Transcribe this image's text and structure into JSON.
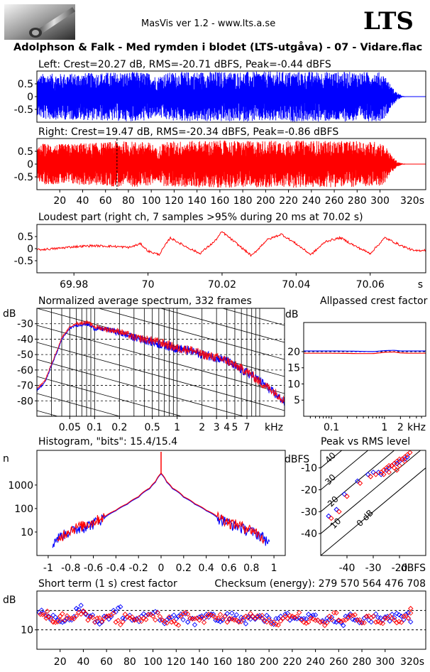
{
  "header": {
    "app": "MasVis ver 1.2 - www.lts.a.se",
    "brand": "LTS",
    "track": "Adolphson & Falk - Med rymden i blodet (LTS-utgåva) - 07 - Vidare.flac"
  },
  "colors": {
    "left": "#0000ff",
    "right": "#ff0000",
    "grid": "#000000",
    "background": "#ffffff"
  },
  "chart_data": [
    {
      "id": "waveform_left",
      "type": "area",
      "title": "Left: Crest=20.27 dB, RMS=-20.71 dBFS, Peak=-0.44 dBFS",
      "series": [
        {
          "name": "Left",
          "color": "#0000ff"
        }
      ],
      "ylim": [
        -1,
        1
      ],
      "yticks": [
        0.5,
        0,
        -0.5
      ],
      "ytick_labels": [
        "0.5",
        "0",
        "-0.5"
      ],
      "xlim": [
        0,
        340
      ],
      "envelope_x": [
        0,
        5,
        20,
        40,
        60,
        70,
        90,
        100,
        105,
        110,
        120,
        130,
        150,
        170,
        180,
        200,
        220,
        240,
        260,
        280,
        300,
        305,
        310,
        315,
        320
      ],
      "envelope_peak": [
        0.72,
        0.9,
        0.9,
        0.92,
        0.95,
        0.96,
        0.97,
        0.92,
        0.75,
        0.92,
        0.96,
        0.97,
        0.98,
        0.98,
        0.97,
        0.98,
        0.98,
        0.98,
        0.97,
        0.97,
        0.96,
        0.8,
        0.4,
        0.15,
        0.02
      ]
    },
    {
      "id": "waveform_right",
      "type": "area",
      "title": "Right: Crest=19.47 dB, RMS=-20.34 dBFS, Peak=-0.86 dBFS",
      "series": [
        {
          "name": "Right",
          "color": "#ff0000"
        }
      ],
      "ylim": [
        -1,
        1
      ],
      "yticks": [
        0.5,
        0,
        -0.5
      ],
      "ytick_labels": [
        "0.5",
        "0",
        "-0.5"
      ],
      "xlim": [
        0,
        340
      ],
      "xticks": [
        20,
        40,
        60,
        80,
        100,
        120,
        140,
        160,
        180,
        200,
        220,
        240,
        260,
        280,
        300
      ],
      "xtick_labels": [
        "20",
        "40",
        "60",
        "80",
        "100",
        "120",
        "140",
        "160",
        "180",
        "200",
        "220",
        "240",
        "260",
        "280",
        "300"
      ],
      "xunit_label": "320s",
      "marker_x": 70.02,
      "envelope_x": [
        0,
        5,
        20,
        40,
        60,
        70,
        90,
        100,
        105,
        110,
        120,
        130,
        150,
        170,
        180,
        200,
        220,
        240,
        260,
        280,
        300,
        305,
        310,
        315,
        320
      ],
      "envelope_peak": [
        0.6,
        0.8,
        0.78,
        0.82,
        0.85,
        0.9,
        0.88,
        0.84,
        0.6,
        0.85,
        0.9,
        0.9,
        0.92,
        0.92,
        0.9,
        0.92,
        0.92,
        0.92,
        0.9,
        0.9,
        0.88,
        0.7,
        0.35,
        0.1,
        0.02
      ]
    },
    {
      "id": "loudest_part",
      "type": "line",
      "title": "Loudest part (right ch, 7 samples >95% during 20 ms at 70.02 s)",
      "ylim": [
        -1,
        1
      ],
      "yticks": [
        0.5,
        0,
        -0.5
      ],
      "ytick_labels": [
        "0.5",
        "0",
        "-0.5"
      ],
      "xlim": [
        69.97,
        70.075
      ],
      "xticks": [
        69.98,
        70.0,
        70.02,
        70.04,
        70.06
      ],
      "xtick_labels": [
        "69.98",
        "70",
        "70.02",
        "70.04",
        "70.06"
      ],
      "xunit_label": "s",
      "series": [
        {
          "name": "Right",
          "color": "#ff0000",
          "x": [
            69.97,
            69.975,
            69.98,
            69.985,
            69.99,
            69.995,
            69.998,
            70.0,
            70.003,
            70.006,
            70.01,
            70.014,
            70.018,
            70.02,
            70.024,
            70.028,
            70.032,
            70.036,
            70.04,
            70.044,
            70.048,
            70.052,
            70.056,
            70.06,
            70.064,
            70.068,
            70.072,
            70.075
          ],
          "y": [
            -0.05,
            0.0,
            0.08,
            0.12,
            0.1,
            0.05,
            0.2,
            -0.1,
            -0.25,
            0.45,
            0.1,
            -0.2,
            0.3,
            0.7,
            0.2,
            -0.3,
            0.35,
            0.6,
            0.2,
            -0.25,
            0.3,
            0.45,
            0.1,
            -0.2,
            0.45,
            0.15,
            -0.1,
            -0.05
          ]
        }
      ]
    },
    {
      "id": "spectrum",
      "type": "line",
      "title": "Normalized average spectrum, 332 frames",
      "ylabel": "dB",
      "xlabel": "kHz",
      "xscale": "log",
      "xlim": [
        0.02,
        20
      ],
      "ylim": [
        -90,
        -20
      ],
      "yticks": [
        -30,
        -40,
        -50,
        -60,
        -70,
        -80
      ],
      "ytick_labels": [
        "-30",
        "-40",
        "-50",
        "-60",
        "-70",
        "-80"
      ],
      "xticks": [
        0.05,
        0.1,
        0.2,
        0.5,
        1,
        2,
        3,
        4,
        5,
        7
      ],
      "xtick_labels": [
        "0.05",
        "0.1",
        "0.2",
        "0.5",
        "1",
        "2",
        "3",
        "4",
        "5",
        "7"
      ],
      "series": [
        {
          "name": "Left",
          "color": "#0000ff",
          "x": [
            0.02,
            0.025,
            0.03,
            0.04,
            0.05,
            0.06,
            0.08,
            0.1,
            0.15,
            0.2,
            0.3,
            0.5,
            0.7,
            1,
            1.5,
            2,
            3,
            4,
            5,
            7,
            10,
            14,
            20
          ],
          "y": [
            -73,
            -68,
            -57,
            -40,
            -33,
            -31,
            -30,
            -33,
            -34,
            -36,
            -39,
            -42,
            -44,
            -46,
            -48,
            -50,
            -52,
            -54,
            -58,
            -62,
            -67,
            -74,
            -81
          ]
        },
        {
          "name": "Right",
          "color": "#ff0000",
          "x": [
            0.02,
            0.025,
            0.03,
            0.04,
            0.05,
            0.06,
            0.08,
            0.1,
            0.15,
            0.2,
            0.3,
            0.5,
            0.7,
            1,
            1.5,
            2,
            3,
            4,
            5,
            7,
            10,
            14,
            20
          ],
          "y": [
            -72,
            -67,
            -56,
            -39,
            -32,
            -30,
            -29,
            -32,
            -34,
            -35,
            -39,
            -41,
            -43,
            -46,
            -47,
            -50,
            -52,
            -54,
            -57,
            -61,
            -68,
            -73,
            -80
          ]
        }
      ]
    },
    {
      "id": "allpassed_crest",
      "type": "line",
      "title": "Allpassed crest factor",
      "ylabel": "dB",
      "xlabel": "kHz",
      "xscale": "log",
      "xlim": [
        0.03,
        6
      ],
      "ylim": [
        0,
        29
      ],
      "yticks": [
        20,
        15,
        10,
        5
      ],
      "ytick_labels": [
        "20",
        "15",
        "10",
        "5"
      ],
      "xticks": [
        0.1,
        1,
        2
      ],
      "xtick_labels": [
        "0.1",
        "1",
        "2"
      ],
      "reference_y": 20,
      "series": [
        {
          "name": "Left",
          "color": "#0000ff",
          "x": [
            0.03,
            0.1,
            0.3,
            0.6,
            1,
            1.5,
            2,
            3,
            6
          ],
          "y": [
            20.2,
            20.2,
            20.1,
            20.0,
            20.3,
            20.4,
            20.2,
            20.2,
            20.2
          ]
        },
        {
          "name": "Right",
          "color": "#ff0000",
          "x": [
            0.03,
            0.1,
            0.3,
            0.6,
            1,
            1.5,
            2,
            3,
            6
          ],
          "y": [
            19.5,
            19.5,
            19.4,
            19.4,
            19.8,
            19.9,
            19.6,
            19.5,
            19.5
          ]
        }
      ]
    },
    {
      "id": "histogram",
      "type": "line",
      "title": "Histogram, \"bits\": 15.4/15.4",
      "ylabel": "n",
      "yscale": "log",
      "xlim": [
        -1.1,
        1.1
      ],
      "ylim": [
        1,
        30000
      ],
      "yticks": [
        10,
        100,
        1000
      ],
      "ytick_labels": [
        "10",
        "100",
        "1000"
      ],
      "xticks": [
        -1,
        -0.8,
        -0.6,
        -0.4,
        -0.2,
        0,
        0.2,
        0.4,
        0.6,
        0.8,
        1
      ],
      "xtick_labels": [
        "-1",
        "-0.8",
        "-0.6",
        "-0.4",
        "-0.2",
        "0",
        "0.2",
        "0.4",
        "0.6",
        "0.8",
        "1"
      ],
      "series": [
        {
          "name": "Left",
          "color": "#0000ff",
          "x": [
            -0.96,
            -0.9,
            -0.8,
            -0.7,
            -0.6,
            -0.5,
            -0.4,
            -0.3,
            -0.2,
            -0.1,
            -0.05,
            0,
            0.05,
            0.1,
            0.2,
            0.3,
            0.4,
            0.5,
            0.6,
            0.7,
            0.8,
            0.9,
            0.96
          ],
          "y": [
            3,
            6,
            10,
            15,
            22,
            40,
            80,
            150,
            300,
            700,
            1300,
            3000,
            1300,
            700,
            300,
            150,
            80,
            40,
            22,
            15,
            10,
            6,
            3
          ]
        },
        {
          "name": "Right",
          "color": "#ff0000",
          "x": [
            -0.92,
            -0.86,
            -0.8,
            -0.7,
            -0.6,
            -0.5,
            -0.4,
            -0.3,
            -0.2,
            -0.1,
            -0.05,
            0,
            0.05,
            0.1,
            0.2,
            0.3,
            0.4,
            0.5,
            0.6,
            0.7,
            0.8,
            0.86,
            0.92
          ],
          "y": [
            3,
            8,
            12,
            18,
            25,
            45,
            85,
            160,
            320,
            750,
            1400,
            3200,
            1400,
            750,
            320,
            160,
            85,
            45,
            25,
            18,
            12,
            8,
            3
          ]
        }
      ]
    },
    {
      "id": "peak_vs_rms",
      "type": "scatter",
      "title": "Peak vs RMS level",
      "ylabel": "dBFS",
      "xlabel": "dBFS",
      "xlim": [
        -50,
        -10
      ],
      "ylim": [
        -50,
        -2
      ],
      "yticks": [
        -10,
        -20,
        -30,
        -40
      ],
      "ytick_labels": [
        "-10",
        "-20",
        "-30",
        "-40"
      ],
      "xticks": [
        -40,
        -30,
        -20
      ],
      "xtick_labels": [
        "-40",
        "-30",
        "-20"
      ],
      "diagonals": [
        40,
        30,
        20,
        10,
        0
      ],
      "diagonal_labels": [
        "40",
        "30",
        "20",
        "10",
        "0 dB"
      ],
      "series": [
        {
          "name": "Left",
          "color": "#0000ff",
          "x": [
            -47,
            -44,
            -41,
            -36,
            -32,
            -30,
            -28,
            -27,
            -25,
            -24,
            -23,
            -22,
            -21,
            -20,
            -19,
            -18,
            -17
          ],
          "y": [
            -32,
            -29,
            -22,
            -16,
            -13,
            -12,
            -12,
            -13,
            -11,
            -10,
            -9,
            -8,
            -8,
            -7,
            -6,
            -6,
            -5
          ]
        },
        {
          "name": "Right",
          "color": "#ff0000",
          "x": [
            -46,
            -43,
            -40,
            -35,
            -31,
            -29,
            -27,
            -26,
            -25,
            -24,
            -23,
            -22,
            -21,
            -20,
            -19,
            -18,
            -17,
            -16,
            -24,
            -22,
            -20,
            -18,
            -26,
            -21
          ],
          "y": [
            -33,
            -30,
            -23,
            -17,
            -14,
            -13,
            -12,
            -11,
            -10,
            -9,
            -9,
            -8,
            -7,
            -6,
            -6,
            -5,
            -4,
            -3,
            -12,
            -10,
            -9,
            -7,
            -13,
            -11
          ]
        }
      ]
    },
    {
      "id": "short_term_crest",
      "type": "scatter",
      "title": "Short term (1 s) crest factor",
      "right_label": "Checksum (energy):   279 570 564 476 708",
      "ylabel": "dB",
      "xlim": [
        0,
        335
      ],
      "ylim": [
        0,
        30
      ],
      "yticks": [
        10
      ],
      "ytick_labels": [
        "10"
      ],
      "reference_lines": [
        20,
        10
      ],
      "xticks": [
        20,
        40,
        60,
        80,
        100,
        120,
        140,
        160,
        180,
        200,
        220,
        240,
        260,
        280,
        300
      ],
      "xtick_labels": [
        "20",
        "40",
        "60",
        "80",
        "100",
        "120",
        "140",
        "160",
        "180",
        "200",
        "220",
        "240",
        "260",
        "280",
        "300"
      ],
      "xunit_label": "320s",
      "series": [
        {
          "name": "Left",
          "color": "#0000ff",
          "x": [
            2,
            10,
            18,
            26,
            34,
            42,
            50,
            58,
            66,
            74,
            82,
            90,
            98,
            106,
            114,
            122,
            130,
            138,
            146,
            154,
            162,
            170,
            178,
            186,
            194,
            202,
            210,
            218,
            226,
            234,
            242,
            250,
            258,
            266,
            274,
            282,
            290,
            298,
            306,
            314,
            320
          ],
          "y": [
            19,
            17,
            15,
            16,
            21,
            18,
            14,
            17,
            20,
            16,
            15,
            17,
            18,
            15,
            16,
            17,
            14,
            16,
            18,
            15,
            17,
            16,
            15,
            17,
            16,
            14,
            17,
            15,
            16,
            18,
            15,
            16,
            14,
            17,
            15,
            16,
            17,
            15,
            18,
            17,
            16
          ]
        },
        {
          "name": "Right",
          "color": "#ff0000",
          "x": [
            3,
            8,
            14,
            20,
            28,
            36,
            44,
            52,
            60,
            68,
            76,
            84,
            92,
            100,
            108,
            116,
            124,
            132,
            140,
            148,
            156,
            164,
            172,
            180,
            188,
            196,
            204,
            212,
            220,
            228,
            236,
            244,
            252,
            260,
            268,
            276,
            284,
            292,
            300,
            308,
            316,
            322
          ],
          "y": [
            18,
            16,
            14,
            17,
            16,
            19,
            15,
            16,
            17,
            14,
            18,
            15,
            16,
            17,
            15,
            14,
            17,
            16,
            15,
            18,
            16,
            14,
            15,
            17,
            16,
            15,
            14,
            16,
            17,
            15,
            16,
            14,
            17,
            15,
            16,
            15,
            17,
            14,
            16,
            15,
            17,
            21
          ]
        }
      ]
    }
  ]
}
